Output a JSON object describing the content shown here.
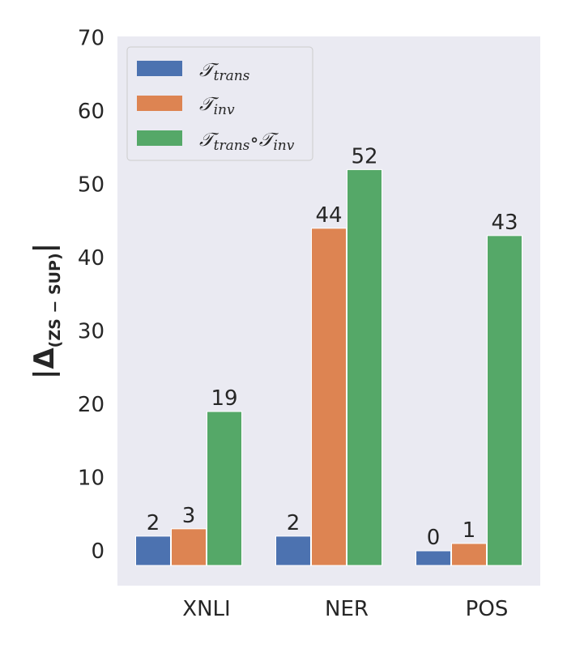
{
  "chart_data": {
    "type": "bar",
    "categories": [
      "XNLI",
      "NER",
      "POS"
    ],
    "series": [
      {
        "name_main": "𝒯",
        "name_sub": "trans",
        "color": "#4c72b0",
        "values": [
          2,
          2,
          0
        ]
      },
      {
        "name_main": "𝒯",
        "name_sub": "inv",
        "color": "#dd8452",
        "values": [
          3,
          44,
          1
        ]
      },
      {
        "name_main": "𝒯",
        "name_sub": "trans",
        "name_mid": "∘",
        "name_main2": "𝒯",
        "name_sub2": "inv",
        "color": "#55a868",
        "values": [
          19,
          52,
          43
        ]
      }
    ],
    "data_labels": [
      [
        "2",
        "2",
        "0"
      ],
      [
        "3",
        "44",
        "1"
      ],
      [
        "19",
        "52",
        "43"
      ]
    ],
    "y_ticks": [
      "0",
      "10",
      "20",
      "30",
      "40",
      "50",
      "60",
      "70"
    ],
    "ylabel": {
      "main": "|Δ",
      "sub": "(ZS − SUP)",
      "end": "|"
    },
    "ylim": [
      -2,
      70
    ],
    "grid": false,
    "legend_position": "top-left",
    "background_color": "#eaeaf2"
  }
}
